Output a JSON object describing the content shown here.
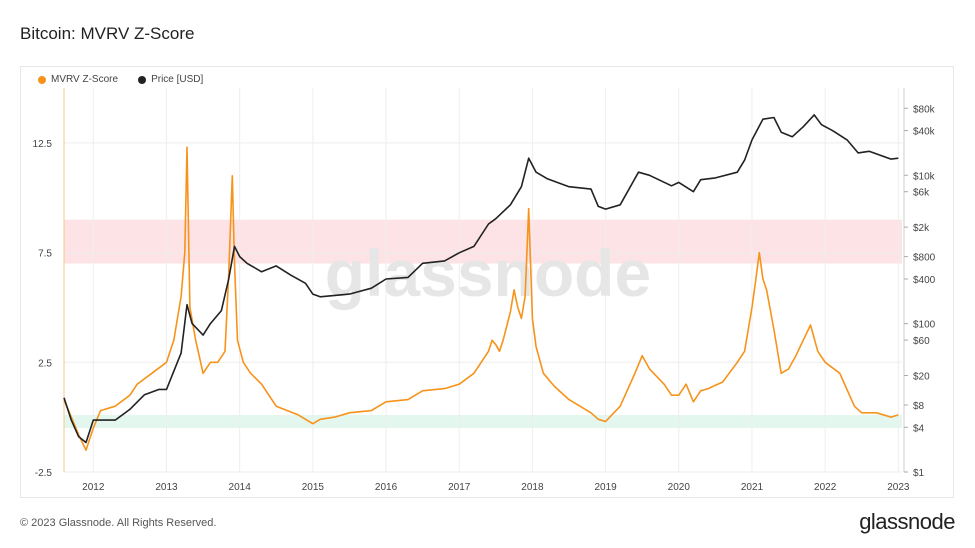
{
  "title": "Bitcoin: MVRV Z-Score",
  "legend": [
    {
      "label": "MVRV Z-Score",
      "color": "#f7931a"
    },
    {
      "label": "Price [USD]",
      "color": "#222222"
    }
  ],
  "footer": "© 2023 Glassnode. All Rights Reserved.",
  "brand": "glassnode",
  "watermark": "glassnode",
  "chart_data": {
    "type": "line",
    "title": "Bitcoin: MVRV Z-Score",
    "x_range": [
      2011.6,
      2023.05
    ],
    "x_ticks": [
      2012,
      2013,
      2014,
      2015,
      2016,
      2017,
      2018,
      2019,
      2020,
      2021,
      2022,
      2023
    ],
    "y_left": {
      "range": [
        -2.5,
        15
      ],
      "ticks": [
        -2.5,
        2.5,
        7.5,
        12.5
      ]
    },
    "y_right": {
      "scale": "log",
      "range": [
        1,
        150000
      ],
      "ticks": [
        {
          "value": 1,
          "label": "$1"
        },
        {
          "value": 4,
          "label": "$4"
        },
        {
          "value": 8,
          "label": "$8"
        },
        {
          "value": 20,
          "label": "$20"
        },
        {
          "value": 60,
          "label": "$60"
        },
        {
          "value": 100,
          "label": "$100"
        },
        {
          "value": 400,
          "label": "$400"
        },
        {
          "value": 800,
          "label": "$800"
        },
        {
          "value": 2000,
          "label": "$2k"
        },
        {
          "value": 6000,
          "label": "$6k"
        },
        {
          "value": 10000,
          "label": "$10k"
        },
        {
          "value": 40000,
          "label": "$40k"
        },
        {
          "value": 80000,
          "label": "$80k"
        }
      ]
    },
    "bands": [
      {
        "zone": "red",
        "from": 7,
        "to": 9,
        "color": "#fde3e5"
      },
      {
        "zone": "green",
        "from": -0.5,
        "to": 0.1,
        "color": "#e3f7ee"
      }
    ],
    "series": [
      {
        "name": "MVRV Z-Score",
        "axis": "left",
        "color": "#f7931a",
        "x": [
          2011.6,
          2011.7,
          2011.8,
          2011.9,
          2012.0,
          2012.1,
          2012.3,
          2012.5,
          2012.6,
          2012.8,
          2013.0,
          2013.1,
          2013.2,
          2013.25,
          2013.28,
          2013.32,
          2013.4,
          2013.5,
          2013.6,
          2013.7,
          2013.8,
          2013.85,
          2013.9,
          2013.93,
          2013.97,
          2014.05,
          2014.15,
          2014.3,
          2014.5,
          2014.8,
          2015.0,
          2015.1,
          2015.3,
          2015.5,
          2015.8,
          2016.0,
          2016.3,
          2016.5,
          2016.8,
          2017.0,
          2017.2,
          2017.4,
          2017.45,
          2017.5,
          2017.55,
          2017.6,
          2017.7,
          2017.75,
          2017.8,
          2017.85,
          2017.9,
          2017.95,
          2018.0,
          2018.05,
          2018.15,
          2018.3,
          2018.5,
          2018.8,
          2018.9,
          2019.0,
          2019.2,
          2019.4,
          2019.5,
          2019.6,
          2019.8,
          2019.9,
          2020.0,
          2020.1,
          2020.2,
          2020.3,
          2020.4,
          2020.6,
          2020.8,
          2020.9,
          2021.0,
          2021.05,
          2021.1,
          2021.15,
          2021.2,
          2021.3,
          2021.4,
          2021.5,
          2021.6,
          2021.7,
          2021.8,
          2021.9,
          2022.0,
          2022.2,
          2022.4,
          2022.5,
          2022.7,
          2022.9,
          2023.0
        ],
        "y": [
          0.8,
          0.0,
          -0.8,
          -1.5,
          -0.5,
          0.3,
          0.5,
          1.0,
          1.5,
          2.0,
          2.5,
          3.5,
          5.5,
          7.5,
          12.3,
          5.0,
          3.5,
          2.0,
          2.5,
          2.5,
          3.0,
          6.5,
          11.0,
          7.0,
          3.5,
          2.5,
          2.0,
          1.5,
          0.5,
          0.1,
          -0.3,
          -0.1,
          0.0,
          0.2,
          0.3,
          0.7,
          0.8,
          1.2,
          1.3,
          1.5,
          2.0,
          3.0,
          3.5,
          3.3,
          3.0,
          3.5,
          4.8,
          5.8,
          5.0,
          4.5,
          5.5,
          9.5,
          4.5,
          3.2,
          2.0,
          1.4,
          0.8,
          0.2,
          -0.1,
          -0.2,
          0.5,
          2.0,
          2.8,
          2.2,
          1.5,
          1.0,
          1.0,
          1.5,
          0.7,
          1.2,
          1.3,
          1.6,
          2.5,
          3.0,
          5.0,
          6.2,
          7.5,
          6.3,
          5.8,
          4.0,
          2.0,
          2.2,
          2.8,
          3.5,
          4.2,
          3.0,
          2.5,
          2.0,
          0.5,
          0.2,
          0.2,
          0.0,
          0.1
        ]
      },
      {
        "name": "Price [USD]",
        "axis": "right",
        "color": "#222222",
        "x": [
          2011.6,
          2011.7,
          2011.8,
          2011.9,
          2012.0,
          2012.3,
          2012.5,
          2012.7,
          2012.9,
          2013.0,
          2013.2,
          2013.28,
          2013.35,
          2013.5,
          2013.6,
          2013.75,
          2013.85,
          2013.93,
          2014.0,
          2014.1,
          2014.3,
          2014.5,
          2014.7,
          2014.9,
          2015.0,
          2015.1,
          2015.5,
          2015.8,
          2016.0,
          2016.3,
          2016.5,
          2016.8,
          2017.0,
          2017.2,
          2017.4,
          2017.5,
          2017.7,
          2017.85,
          2017.95,
          2018.05,
          2018.2,
          2018.5,
          2018.8,
          2018.9,
          2019.0,
          2019.2,
          2019.45,
          2019.6,
          2019.9,
          2020.0,
          2020.2,
          2020.3,
          2020.5,
          2020.8,
          2020.9,
          2021.0,
          2021.15,
          2021.3,
          2021.4,
          2021.55,
          2021.7,
          2021.85,
          2021.95,
          2022.1,
          2022.3,
          2022.45,
          2022.6,
          2022.9,
          2023.0
        ],
        "y": [
          10,
          5,
          3,
          2.5,
          5,
          5,
          7,
          11,
          13,
          13,
          40,
          180,
          100,
          70,
          100,
          150,
          400,
          1100,
          800,
          650,
          500,
          600,
          450,
          350,
          250,
          230,
          250,
          300,
          400,
          420,
          650,
          700,
          900,
          1100,
          2200,
          2600,
          4000,
          7000,
          17000,
          11000,
          9000,
          7000,
          6500,
          3800,
          3500,
          4000,
          11000,
          10000,
          7200,
          8000,
          6000,
          8700,
          9200,
          11000,
          16000,
          30000,
          57000,
          60000,
          38000,
          33000,
          45000,
          65000,
          48000,
          40000,
          30000,
          20000,
          21000,
          16500,
          17000
        ]
      }
    ]
  }
}
